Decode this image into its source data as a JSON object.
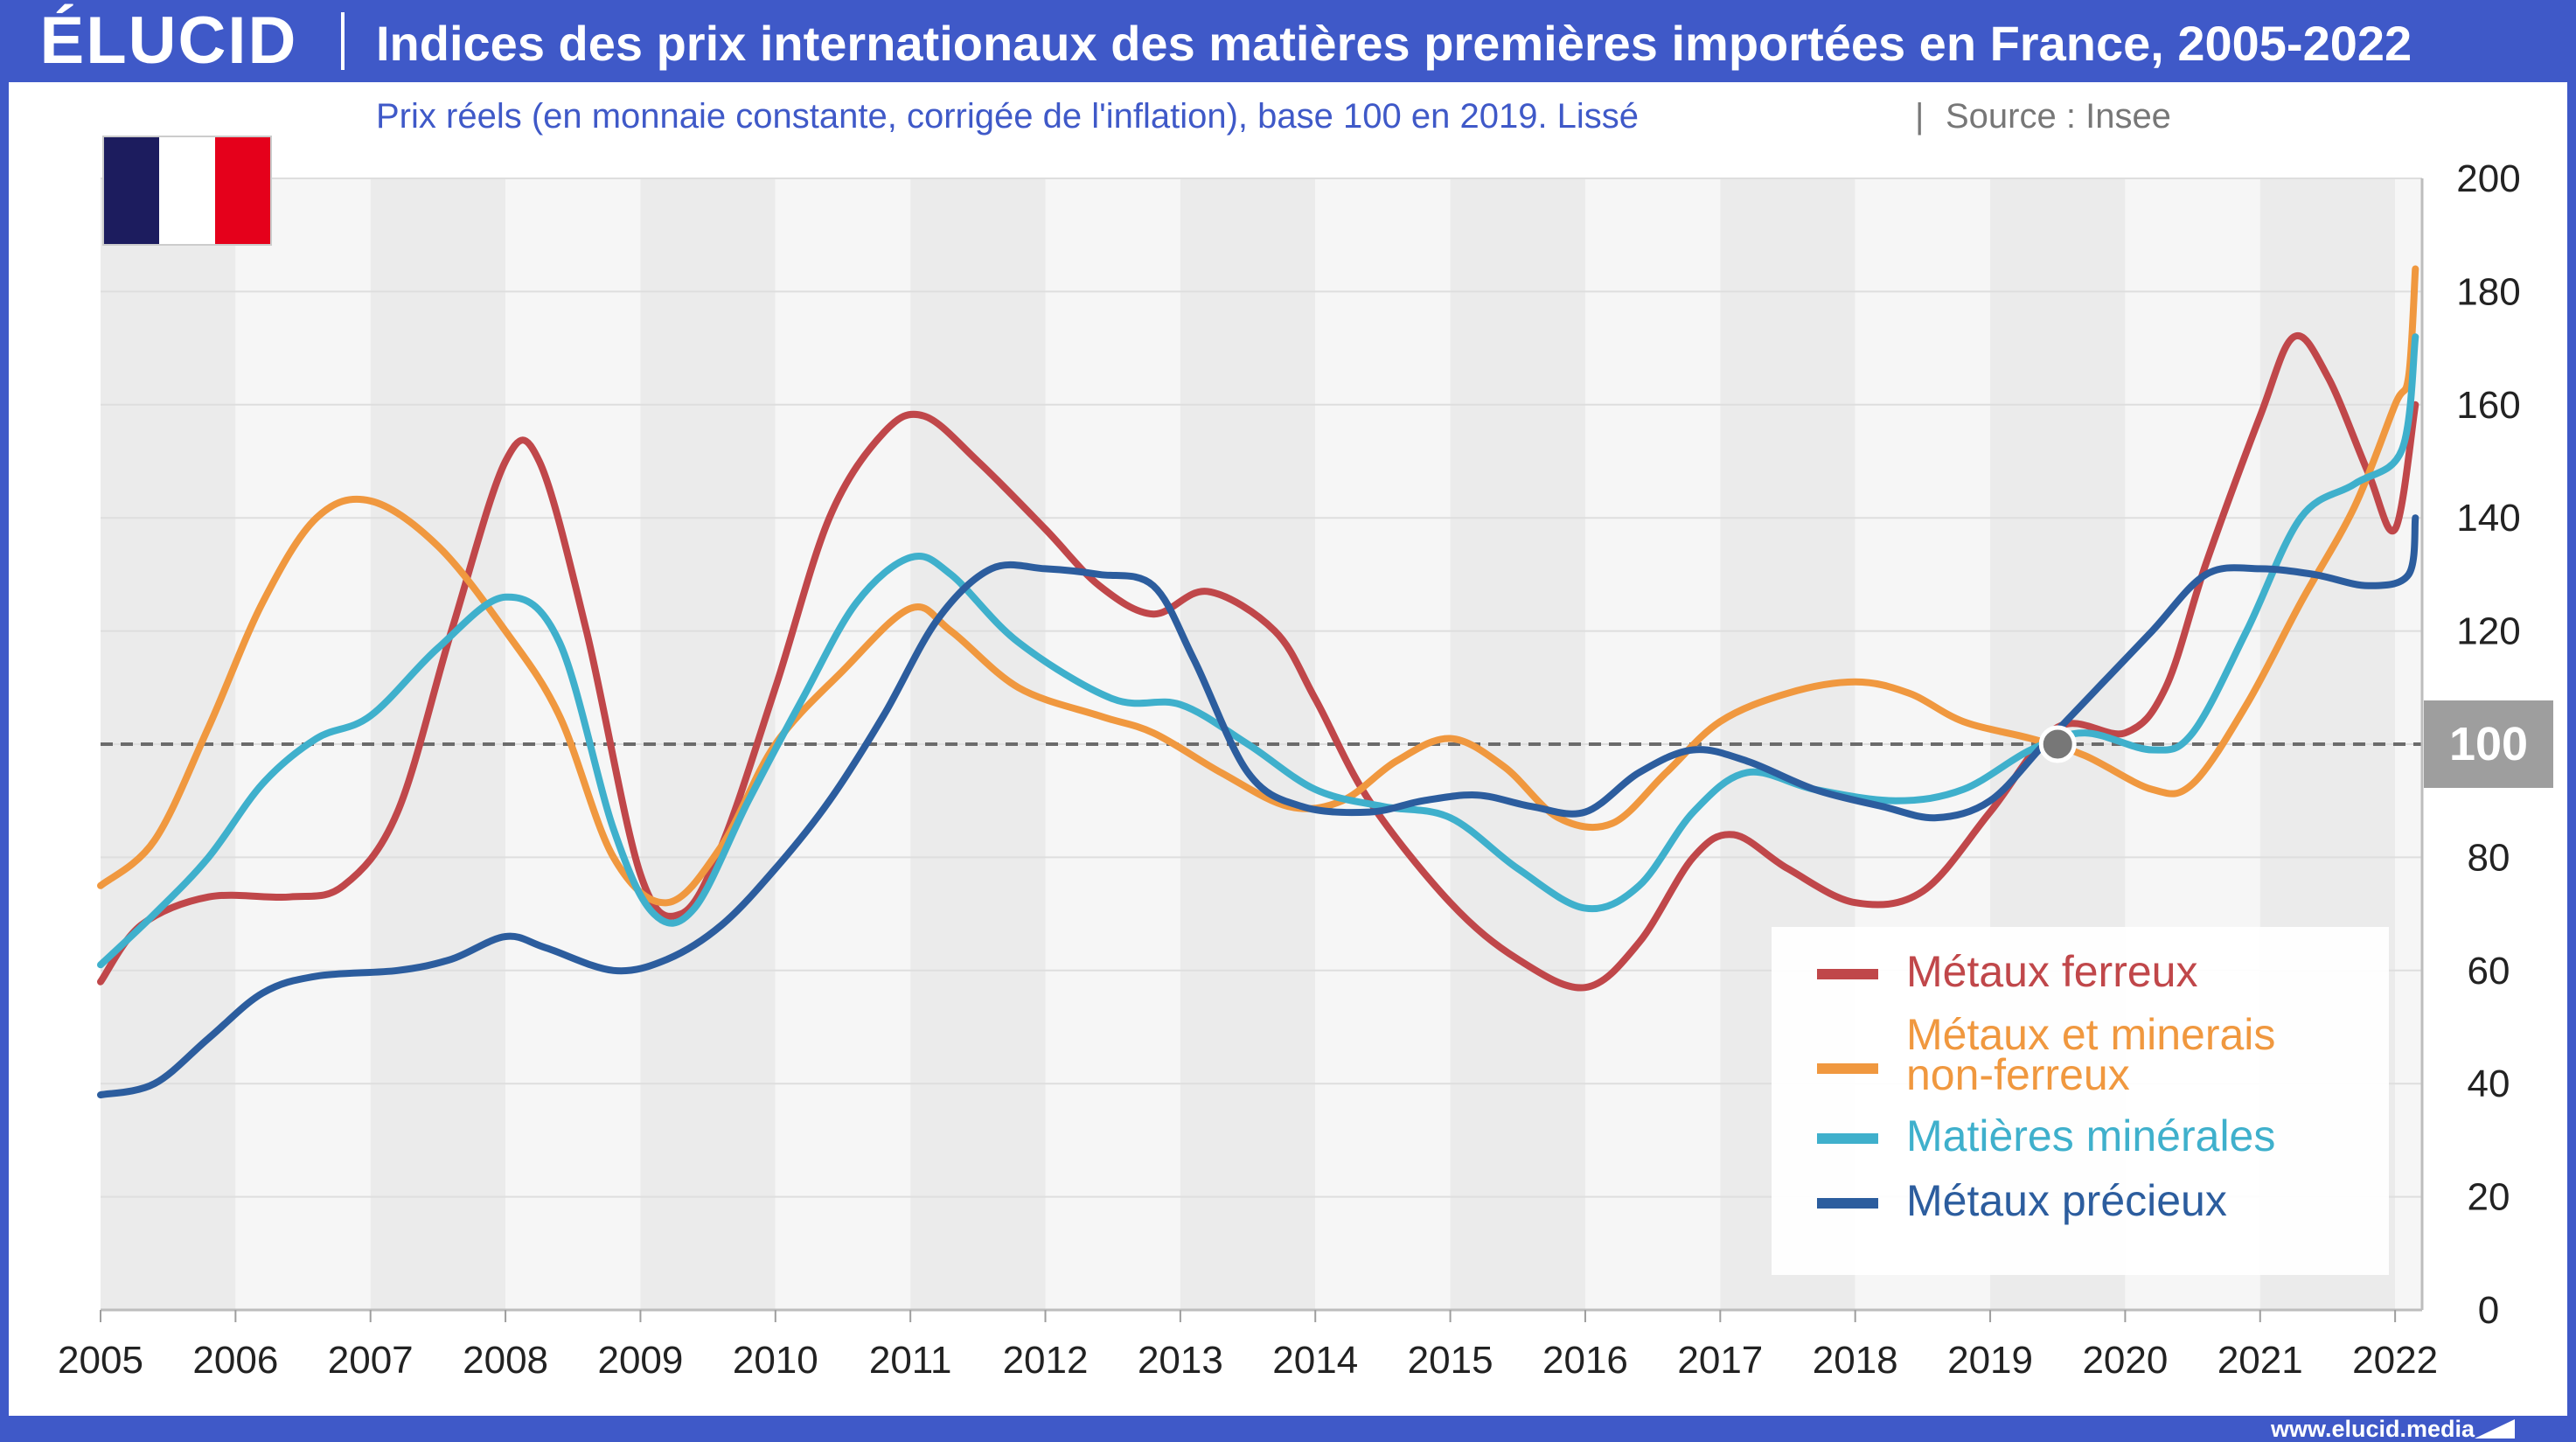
{
  "header": {
    "logo_text": "ÉLUCID",
    "title": "Indices des prix internationaux des matières premières importées en France, 2005-2022"
  },
  "subtitle": {
    "main": "Prix réels (en monnaie constante, corrigée de l'inflation), base 100 en 2019. Lissé",
    "separator": "|",
    "source": "Source : Insee"
  },
  "footer": {
    "url": "www.elucid.media"
  },
  "flag": {
    "colors": [
      "#1c1c5e",
      "#ffffff",
      "#e5001b"
    ]
  },
  "colors": {
    "accent": "#3f59c8",
    "subtitle": "#3f59c8",
    "source": "#777777",
    "axis_text": "#222222",
    "reference_badge": "#9e9e9e"
  },
  "chart_data": {
    "type": "line",
    "title": "Indices des prix internationaux des matières premières importées en France, 2005-2022",
    "xlabel": "",
    "ylabel": "",
    "xlim": [
      2005,
      2022.2
    ],
    "ylim": [
      0,
      200
    ],
    "x_ticks": [
      "2005",
      "2006",
      "2007",
      "2008",
      "2009",
      "2010",
      "2011",
      "2012",
      "2013",
      "2014",
      "2015",
      "2016",
      "2017",
      "2018",
      "2019",
      "2020",
      "2021",
      "2022"
    ],
    "y_ticks": [
      "0",
      "20",
      "40",
      "60",
      "80",
      "100",
      "120",
      "140",
      "160",
      "180",
      "200"
    ],
    "reference_line": {
      "y": 100,
      "label": "100",
      "style": "dashed"
    },
    "reference_point": {
      "x": 2019.5,
      "y": 100
    },
    "grid": "horizontal",
    "alternating_year_bands": true,
    "legend_position": "bottom-right",
    "series": [
      {
        "name": "Métaux ferreux",
        "color": "#c0474a",
        "points": [
          [
            2005,
            58
          ],
          [
            2005.3,
            68
          ],
          [
            2005.8,
            73
          ],
          [
            2006.4,
            73
          ],
          [
            2006.8,
            75
          ],
          [
            2007.2,
            88
          ],
          [
            2007.6,
            120
          ],
          [
            2008,
            150
          ],
          [
            2008.25,
            150
          ],
          [
            2008.6,
            120
          ],
          [
            2009,
            77
          ],
          [
            2009.3,
            70
          ],
          [
            2009.6,
            82
          ],
          [
            2010,
            110
          ],
          [
            2010.4,
            140
          ],
          [
            2010.8,
            155
          ],
          [
            2011.1,
            158
          ],
          [
            2011.5,
            150
          ],
          [
            2012,
            138
          ],
          [
            2012.4,
            128
          ],
          [
            2012.8,
            123
          ],
          [
            2013.2,
            127
          ],
          [
            2013.7,
            120
          ],
          [
            2014,
            108
          ],
          [
            2014.4,
            90
          ],
          [
            2015,
            72
          ],
          [
            2015.5,
            62
          ],
          [
            2016,
            57
          ],
          [
            2016.4,
            65
          ],
          [
            2016.8,
            80
          ],
          [
            2017.1,
            84
          ],
          [
            2017.5,
            78
          ],
          [
            2018,
            72
          ],
          [
            2018.5,
            74
          ],
          [
            2019,
            88
          ],
          [
            2019.5,
            103
          ],
          [
            2020,
            102
          ],
          [
            2020.3,
            110
          ],
          [
            2020.6,
            132
          ],
          [
            2021,
            158
          ],
          [
            2021.25,
            172
          ],
          [
            2021.5,
            165
          ],
          [
            2021.8,
            148
          ],
          [
            2022,
            138
          ],
          [
            2022.15,
            160
          ]
        ]
      },
      {
        "name": "Métaux et minerais non-ferreux",
        "color": "#f0983f",
        "points": [
          [
            2005,
            75
          ],
          [
            2005.4,
            83
          ],
          [
            2005.8,
            103
          ],
          [
            2006.2,
            125
          ],
          [
            2006.6,
            140
          ],
          [
            2007,
            143
          ],
          [
            2007.5,
            135
          ],
          [
            2008,
            120
          ],
          [
            2008.4,
            105
          ],
          [
            2008.8,
            80
          ],
          [
            2009.2,
            72
          ],
          [
            2009.6,
            82
          ],
          [
            2010,
            100
          ],
          [
            2010.5,
            113
          ],
          [
            2011,
            124
          ],
          [
            2011.3,
            120
          ],
          [
            2011.8,
            110
          ],
          [
            2012.4,
            105
          ],
          [
            2012.8,
            102
          ],
          [
            2013.3,
            95
          ],
          [
            2013.8,
            89
          ],
          [
            2014.2,
            90
          ],
          [
            2014.6,
            97
          ],
          [
            2015,
            101
          ],
          [
            2015.4,
            96
          ],
          [
            2015.8,
            87
          ],
          [
            2016.2,
            86
          ],
          [
            2016.6,
            95
          ],
          [
            2017,
            104
          ],
          [
            2017.5,
            109
          ],
          [
            2018,
            111
          ],
          [
            2018.4,
            109
          ],
          [
            2018.8,
            104
          ],
          [
            2019.3,
            101
          ],
          [
            2019.7,
            98
          ],
          [
            2020.2,
            92
          ],
          [
            2020.5,
            93
          ],
          [
            2020.9,
            107
          ],
          [
            2021.3,
            125
          ],
          [
            2021.7,
            142
          ],
          [
            2022,
            160
          ],
          [
            2022.1,
            165
          ],
          [
            2022.15,
            184
          ]
        ]
      },
      {
        "name": "Matières minérales",
        "color": "#3fb0cc",
        "points": [
          [
            2005,
            61
          ],
          [
            2005.4,
            70
          ],
          [
            2005.8,
            80
          ],
          [
            2006.2,
            93
          ],
          [
            2006.6,
            101
          ],
          [
            2007,
            105
          ],
          [
            2007.5,
            117
          ],
          [
            2008,
            126
          ],
          [
            2008.4,
            118
          ],
          [
            2008.8,
            85
          ],
          [
            2009.1,
            70
          ],
          [
            2009.4,
            71
          ],
          [
            2009.8,
            90
          ],
          [
            2010.2,
            108
          ],
          [
            2010.6,
            125
          ],
          [
            2011,
            133
          ],
          [
            2011.3,
            130
          ],
          [
            2011.8,
            118
          ],
          [
            2012.5,
            108
          ],
          [
            2013,
            107
          ],
          [
            2013.5,
            100
          ],
          [
            2014,
            92
          ],
          [
            2014.5,
            89
          ],
          [
            2015,
            87
          ],
          [
            2015.5,
            78
          ],
          [
            2016,
            71
          ],
          [
            2016.4,
            75
          ],
          [
            2016.8,
            88
          ],
          [
            2017.2,
            95
          ],
          [
            2017.7,
            92
          ],
          [
            2018.3,
            90
          ],
          [
            2018.8,
            92
          ],
          [
            2019.3,
            99
          ],
          [
            2019.7,
            102
          ],
          [
            2020.2,
            99
          ],
          [
            2020.5,
            102
          ],
          [
            2020.9,
            120
          ],
          [
            2021.3,
            140
          ],
          [
            2021.7,
            146
          ],
          [
            2022.05,
            152
          ],
          [
            2022.15,
            172
          ]
        ]
      },
      {
        "name": "Métaux précieux",
        "color": "#2c5d9e",
        "points": [
          [
            2005,
            38
          ],
          [
            2005.4,
            40
          ],
          [
            2005.8,
            48
          ],
          [
            2006.2,
            56
          ],
          [
            2006.6,
            59
          ],
          [
            2007.2,
            60
          ],
          [
            2007.6,
            62
          ],
          [
            2008,
            66
          ],
          [
            2008.3,
            64
          ],
          [
            2008.8,
            60
          ],
          [
            2009.2,
            62
          ],
          [
            2009.6,
            68
          ],
          [
            2010,
            78
          ],
          [
            2010.4,
            90
          ],
          [
            2010.8,
            105
          ],
          [
            2011.2,
            122
          ],
          [
            2011.6,
            131
          ],
          [
            2012,
            131
          ],
          [
            2012.4,
            130
          ],
          [
            2012.8,
            128
          ],
          [
            2013.1,
            115
          ],
          [
            2013.5,
            95
          ],
          [
            2013.9,
            89
          ],
          [
            2014.4,
            88
          ],
          [
            2014.8,
            90
          ],
          [
            2015.2,
            91
          ],
          [
            2015.6,
            89
          ],
          [
            2016,
            88
          ],
          [
            2016.4,
            95
          ],
          [
            2016.8,
            99
          ],
          [
            2017.2,
            97
          ],
          [
            2017.7,
            92
          ],
          [
            2018.2,
            89
          ],
          [
            2018.6,
            87
          ],
          [
            2019,
            90
          ],
          [
            2019.4,
            100
          ],
          [
            2019.8,
            110
          ],
          [
            2020.2,
            120
          ],
          [
            2020.6,
            130
          ],
          [
            2021,
            131
          ],
          [
            2021.4,
            130
          ],
          [
            2021.8,
            128
          ],
          [
            2022.1,
            130
          ],
          [
            2022.15,
            140
          ]
        ]
      }
    ]
  }
}
